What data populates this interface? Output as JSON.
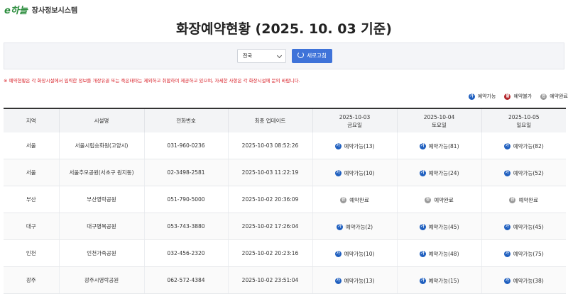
{
  "header": {
    "logo": "e하늘",
    "system_name": "장사정보시스템"
  },
  "title": "화장예약현황 (2025. 10. 03 기준)",
  "filter": {
    "region": "전국",
    "refresh_button": "새로고침"
  },
  "notice": "※ 예약현황은 각 화장시설에서 입력한 정보를 개장유골 또는 죽은태아는 제외하고 취합하여 제공하고 있으며, 자세한 사항은 각 화장시설에 문의 바랍니다.",
  "legend": [
    {
      "icon": "가",
      "label": "예약가능",
      "color": "#1f5fbf"
    },
    {
      "icon": "불",
      "label": "예약불가",
      "color": "#b3262b"
    },
    {
      "icon": "완",
      "label": "예약완료",
      "color": "#9a9a9a"
    }
  ],
  "table": {
    "columns": [
      {
        "label": "지역"
      },
      {
        "label": "시설명"
      },
      {
        "label": "전화번호"
      },
      {
        "label": "최종 업데이트"
      },
      {
        "label": "2025-10-03",
        "sub": "금요일"
      },
      {
        "label": "2025-10-04",
        "sub": "토요일"
      },
      {
        "label": "2025-10-05",
        "sub": "일요일"
      }
    ],
    "rows": [
      [
        "서울",
        "서울시립승화원(고양시)",
        "031-960-0236",
        "2025-10-03 08:52:26",
        {
          "icon": "가",
          "text": "예약가능(13)"
        },
        {
          "icon": "가",
          "text": "예약가능(81)"
        },
        {
          "icon": "가",
          "text": "예약가능(82)"
        }
      ],
      [
        "서울",
        "서울추모공원(서초구 원지동)",
        "02-3498-2581",
        "2025-10-03 11:22:19",
        {
          "icon": "가",
          "text": "예약가능(10)"
        },
        {
          "icon": "가",
          "text": "예약가능(24)"
        },
        {
          "icon": "가",
          "text": "예약가능(52)"
        }
      ],
      [
        "부산",
        "부산영락공원",
        "051-790-5000",
        "2025-10-02 20:36:09",
        {
          "icon": "완",
          "text": "예약완료"
        },
        {
          "icon": "완",
          "text": "예약완료"
        },
        {
          "icon": "완",
          "text": "예약완료"
        }
      ],
      [
        "대구",
        "대구명복공원",
        "053-743-3880",
        "2025-10-02 17:26:04",
        {
          "icon": "가",
          "text": "예약가능(2)"
        },
        {
          "icon": "가",
          "text": "예약가능(45)"
        },
        {
          "icon": "가",
          "text": "예약가능(45)"
        }
      ],
      [
        "인천",
        "인천가족공원",
        "032-456-2320",
        "2025-10-02 20:23:16",
        {
          "icon": "가",
          "text": "예약가능(10)"
        },
        {
          "icon": "가",
          "text": "예약가능(48)"
        },
        {
          "icon": "가",
          "text": "예약가능(75)"
        }
      ],
      [
        "광주",
        "광주시영락공원",
        "062-572-4384",
        "2025-10-02 23:51:04",
        {
          "icon": "가",
          "text": "예약가능(13)"
        },
        {
          "icon": "가",
          "text": "예약가능(15)"
        },
        {
          "icon": "가",
          "text": "예약가능(38)"
        }
      ]
    ]
  }
}
